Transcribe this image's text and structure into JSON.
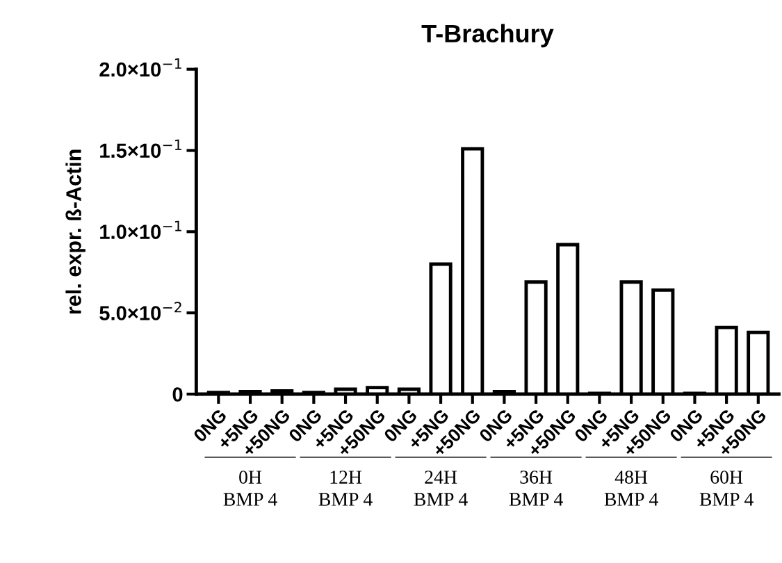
{
  "chart_data": {
    "type": "bar",
    "title": "T-Brachury",
    "ylabel": "rel. expr. ß-Actin",
    "categories": [
      "0NG",
      "+5NG",
      "+50NG",
      "0NG",
      "+5NG",
      "+50NG",
      "0NG",
      "+5NG",
      "+50NG",
      "0NG",
      "+5NG",
      "+50NG",
      "0NG",
      "+5NG",
      "+50NG",
      "0NG",
      "+5NG",
      "+50NG"
    ],
    "values": [
      0.001,
      0.0015,
      0.002,
      0.001,
      0.003,
      0.004,
      0.003,
      0.08,
      0.151,
      0.0015,
      0.069,
      0.092,
      0.0005,
      0.069,
      0.064,
      0.0005,
      0.041,
      0.038
    ],
    "color": "#ffffff",
    "ylim": [
      0,
      0.2
    ],
    "yticks": [
      0,
      {
        "value": 0.05,
        "label": "5.0×10$^{−2}$"
      },
      {
        "value": 0.1,
        "label": "1.0×10$^{−1}$"
      },
      {
        "value": 0.15,
        "label": "1.5×10$^{−1}$"
      },
      {
        "value": 0.2,
        "label": "2.0×10$^{−1}$"
      }
    ],
    "grid": false,
    "annotations": [
      "0H\nBMP 4",
      "12H\nBMP 4",
      "24H\nBMP 4",
      "36H\nBMP 4",
      "48H\nBMP 4",
      "60H\nBMP 4"
    ]
  }
}
